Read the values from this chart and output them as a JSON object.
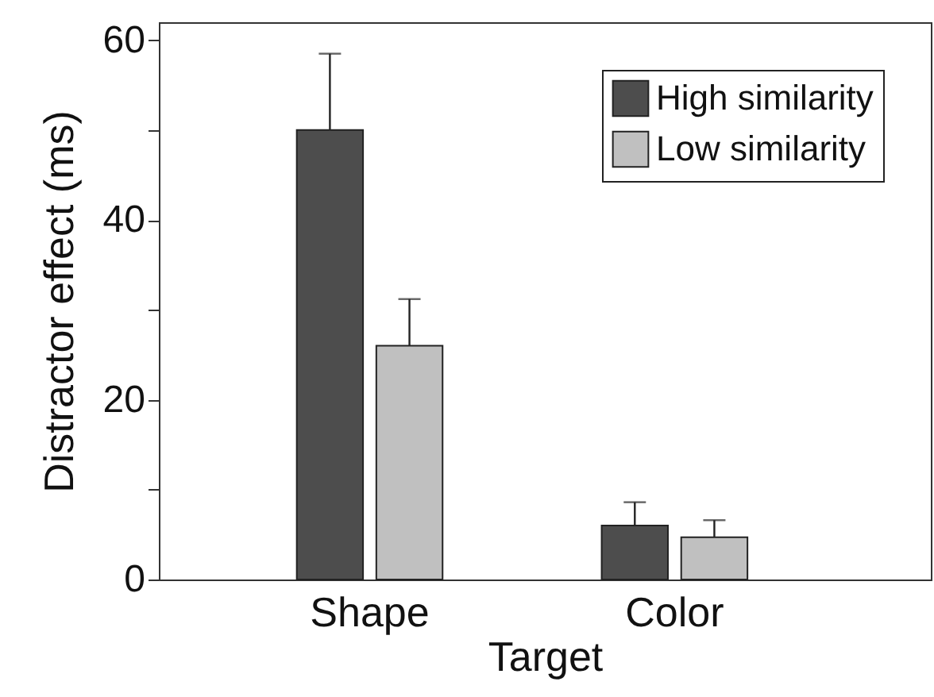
{
  "chart_data": {
    "type": "bar",
    "xlabel": "Target",
    "ylabel": "Distractor effect (ms)",
    "categories": [
      "Shape",
      "Color"
    ],
    "series": [
      {
        "name": "High similarity",
        "color": "#4d4d4d",
        "values": [
          50,
          6
        ],
        "errors": [
          [
            50,
            58.5
          ],
          [
            6,
            8.6
          ]
        ]
      },
      {
        "name": "Low similarity",
        "color": "#c0c0c0",
        "values": [
          26,
          4.7
        ],
        "errors": [
          [
            26,
            31.2
          ],
          [
            4.7,
            6.6
          ]
        ]
      }
    ],
    "ylim": [
      0,
      62
    ],
    "yticks": [
      0,
      {
        "value": 10,
        "label": null
      },
      20,
      {
        "value": 30,
        "label": null
      },
      40,
      {
        "value": 50,
        "label": null
      },
      60
    ],
    "legend": "top right",
    "grid": false
  }
}
